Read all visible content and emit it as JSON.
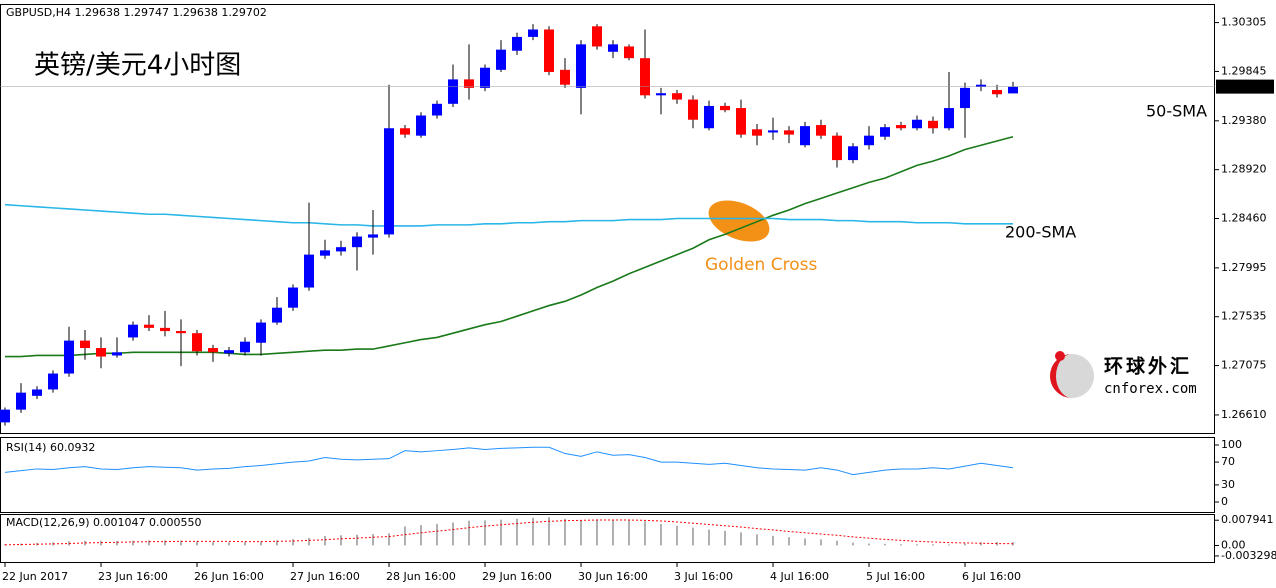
{
  "chart_data": [
    {
      "type": "candlestick",
      "title": "GBPUSD,H4  1.29638 1.29747 1.29638 1.29702",
      "subtitle": "英镑/美元4小时图",
      "annotation": "Golden Cross",
      "watermark": {
        "name": "环球外汇",
        "site": "cnforex.com"
      },
      "categories": [
        "22 Jun 2017",
        null,
        null,
        null,
        null,
        null,
        "23 Jun 16:00",
        null,
        null,
        null,
        null,
        null,
        "26 Jun 16:00",
        null,
        null,
        null,
        null,
        null,
        "27 Jun 16:00",
        null,
        null,
        null,
        null,
        null,
        "28 Jun 16:00",
        null,
        null,
        null,
        null,
        null,
        "29 Jun 16:00",
        null,
        null,
        null,
        null,
        null,
        "30 Jun 16:00",
        null,
        null,
        null,
        null,
        null,
        "3 Jul 16:00",
        null,
        null,
        null,
        null,
        null,
        "4 Jul 16:00",
        null,
        null,
        null,
        null,
        null,
        "5 Jul 16:00",
        null,
        null,
        null,
        null,
        null,
        "6 Jul 16:00",
        null,
        null,
        null
      ],
      "open": [
        1.2654,
        1.2666,
        1.2679,
        1.2685,
        1.27,
        1.2731,
        1.2724,
        1.2717,
        1.2734,
        1.2746,
        1.2743,
        1.274,
        1.2738,
        1.2724,
        1.2719,
        1.272,
        1.2729,
        1.2748,
        1.2762,
        1.2781,
        1.2811,
        1.2815,
        1.2819,
        1.2828,
        1.2831,
        1.2931,
        1.2924,
        1.2943,
        1.2954,
        1.2977,
        1.2969,
        1.2986,
        1.3004,
        1.3017,
        1.3024,
        1.2986,
        1.2969,
        1.3027,
        1.3003,
        1.3008,
        1.2997,
        1.2962,
        1.2964,
        1.2958,
        1.2931,
        1.2952,
        1.295,
        1.293,
        1.2927,
        1.2929,
        1.2915,
        1.2934,
        1.2924,
        1.2901,
        1.2915,
        1.2923,
        1.2934,
        1.2931,
        1.2938,
        1.2931,
        1.295,
        1.297,
        1.2967,
        1.29638
      ],
      "high": [
        1.2668,
        1.2691,
        1.2688,
        1.2703,
        1.2744,
        1.2741,
        1.2734,
        1.2734,
        1.2749,
        1.2755,
        1.2759,
        1.2751,
        1.2741,
        1.2727,
        1.2725,
        1.2734,
        1.2751,
        1.2772,
        1.2784,
        1.2861,
        1.2826,
        1.2825,
        1.2833,
        1.2854,
        1.2972,
        1.2934,
        1.2946,
        1.2957,
        1.2991,
        1.301,
        1.2991,
        1.3014,
        1.3021,
        1.3029,
        1.3027,
        1.2997,
        1.3014,
        1.3029,
        1.3014,
        1.301,
        1.3024,
        1.2969,
        1.2967,
        1.2962,
        1.2957,
        1.2955,
        1.2958,
        1.2935,
        1.2941,
        1.2933,
        1.2937,
        1.2939,
        1.2927,
        1.2917,
        1.2933,
        1.2935,
        1.2937,
        1.2943,
        1.2942,
        1.2984,
        1.2974,
        1.2977,
        1.2972,
        1.29747
      ],
      "low": [
        1.2651,
        1.2663,
        1.2676,
        1.2682,
        1.2697,
        1.2713,
        1.2705,
        1.2715,
        1.2731,
        1.274,
        1.2735,
        1.2707,
        1.2717,
        1.2711,
        1.2716,
        1.2717,
        1.2717,
        1.2746,
        1.2759,
        1.2778,
        1.2808,
        1.2811,
        1.2797,
        1.2812,
        1.2828,
        1.2922,
        1.2922,
        1.294,
        1.2951,
        1.2958,
        1.2966,
        1.2984,
        1.3,
        1.3014,
        1.2981,
        1.2969,
        1.2944,
        1.3005,
        1.2997,
        1.2995,
        1.2959,
        1.2944,
        1.2954,
        1.2931,
        1.2929,
        1.2946,
        1.2922,
        1.2915,
        1.292,
        1.2917,
        1.2913,
        1.2921,
        1.2894,
        1.2898,
        1.2911,
        1.292,
        1.2929,
        1.2929,
        1.2926,
        1.2929,
        1.2922,
        1.2966,
        1.296,
        1.29638
      ],
      "close": [
        1.2666,
        1.2682,
        1.2685,
        1.27,
        1.2731,
        1.2724,
        1.2716,
        1.272,
        1.2746,
        1.2743,
        1.274,
        1.2738,
        1.2721,
        1.272,
        1.2722,
        1.273,
        1.2748,
        1.2762,
        1.2781,
        1.2812,
        1.2816,
        1.2819,
        1.2829,
        1.2831,
        1.2931,
        1.2925,
        1.2943,
        1.2954,
        1.2977,
        1.2969,
        1.2988,
        1.3005,
        1.3017,
        1.3024,
        1.2984,
        1.2972,
        1.301,
        1.3008,
        1.301,
        1.2997,
        1.2962,
        1.2964,
        1.2958,
        1.2939,
        1.2952,
        1.2948,
        1.2925,
        1.2924,
        1.2929,
        1.2925,
        1.2933,
        1.2924,
        1.2901,
        1.2914,
        1.2924,
        1.2932,
        1.2931,
        1.2939,
        1.2931,
        1.295,
        1.2969,
        1.2972,
        1.2963,
        1.29702
      ],
      "up_color": "#0000ff",
      "down_color": "#ff0000",
      "series": [
        {
          "name": "50-SMA",
          "color": "#1a7a1a",
          "values": [
            1.2716,
            1.2716,
            1.2717,
            1.2717,
            1.2717,
            1.2718,
            1.2719,
            1.2719,
            1.272,
            1.272,
            1.272,
            1.272,
            1.272,
            1.272,
            1.2719,
            1.2718,
            1.2718,
            1.2719,
            1.272,
            1.2721,
            1.2722,
            1.2722,
            1.2723,
            1.2723,
            1.2726,
            1.2729,
            1.2732,
            1.2734,
            1.2738,
            1.2742,
            1.2746,
            1.2749,
            1.2754,
            1.2759,
            1.2764,
            1.2768,
            1.2774,
            1.2781,
            1.2787,
            1.2794,
            1.28,
            1.2806,
            1.2812,
            1.2818,
            1.2826,
            1.2831,
            1.2837,
            1.2843,
            1.2849,
            1.2854,
            1.286,
            1.2865,
            1.287,
            1.2875,
            1.288,
            1.2884,
            1.289,
            1.2896,
            1.29,
            1.2905,
            1.2911,
            1.2915,
            1.2919,
            1.2923
          ]
        },
        {
          "name": "200-SMA",
          "color": "#29b6e8",
          "values": [
            1.2859,
            1.2858,
            1.2857,
            1.2856,
            1.2855,
            1.2854,
            1.2853,
            1.2852,
            1.2851,
            1.285,
            1.285,
            1.2849,
            1.2848,
            1.2847,
            1.2846,
            1.2845,
            1.2844,
            1.2843,
            1.2842,
            1.2842,
            1.2841,
            1.284,
            1.284,
            1.2839,
            1.2839,
            1.2839,
            1.2839,
            1.284,
            1.284,
            1.284,
            1.2841,
            1.2841,
            1.2842,
            1.2842,
            1.2843,
            1.2843,
            1.2844,
            1.2844,
            1.2844,
            1.2845,
            1.2845,
            1.2845,
            1.2846,
            1.2846,
            1.2846,
            1.2846,
            1.2846,
            1.2846,
            1.2846,
            1.2845,
            1.2845,
            1.2845,
            1.2844,
            1.2844,
            1.2843,
            1.2843,
            1.2843,
            1.2842,
            1.2842,
            1.2842,
            1.2841,
            1.2841,
            1.2841,
            1.2841
          ]
        }
      ],
      "last_price": 1.29702,
      "ylim": [
        1.2644,
        1.3048
      ],
      "yticks": [
        1.30305,
        1.29845,
        {
          "value": 1.2938,
          "label": "1.29380"
        },
        {
          "value": 1.2892,
          "label": "1.28920"
        },
        {
          "value": 1.2846,
          "label": "1.28460"
        },
        1.27995,
        1.27535,
        1.27075,
        {
          "value": 1.2661,
          "label": "1.26610"
        }
      ]
    },
    {
      "type": "line",
      "title": "RSI(14) 60.0932",
      "color": "#1e90ff",
      "values": [
        52,
        55,
        58,
        57,
        60,
        62,
        58,
        57,
        60,
        62,
        61,
        60,
        56,
        58,
        59,
        62,
        64,
        67,
        70,
        72,
        78,
        75,
        74,
        75,
        76,
        90,
        88,
        90,
        92,
        95,
        92,
        94,
        95,
        96,
        96,
        85,
        80,
        88,
        82,
        83,
        78,
        70,
        70,
        68,
        66,
        68,
        64,
        60,
        58,
        57,
        56,
        60,
        56,
        48,
        52,
        56,
        58,
        58,
        60,
        58,
        63,
        68,
        64,
        60.0932
      ],
      "ylim": [
        -17.5,
        114
      ],
      "yticks": [
        100,
        70,
        30,
        0
      ]
    },
    {
      "type": "macd",
      "title": "MACD(12,26,9) 0.001047 0.000550",
      "color": "#b0b0b0",
      "signal_color": "#ff0000",
      "values": [
        0.0004,
        0.0006,
        0.0008,
        0.001,
        0.0013,
        0.0015,
        0.0015,
        0.0014,
        0.0015,
        0.0016,
        0.0016,
        0.0015,
        0.0013,
        0.0011,
        0.001,
        0.0011,
        0.0013,
        0.0016,
        0.002,
        0.0024,
        0.003,
        0.0032,
        0.0034,
        0.0036,
        0.0038,
        0.006,
        0.0064,
        0.0068,
        0.0072,
        0.0078,
        0.0079,
        0.0081,
        0.0084,
        0.0087,
        0.0089,
        0.0084,
        0.008,
        0.0082,
        0.008,
        0.0079,
        0.0076,
        0.0068,
        0.0062,
        0.0056,
        0.005,
        0.0046,
        0.0041,
        0.0035,
        0.003,
        0.0026,
        0.0022,
        0.0019,
        0.0015,
        0.0009,
        0.0006,
        0.0005,
        0.0004,
        0.0004,
        0.0004,
        0.0003,
        0.0006,
        0.001,
        0.0011,
        0.001047
      ],
      "signal": [
        0.0002,
        0.0003,
        0.0004,
        0.0005,
        0.0006,
        0.0008,
        0.0009,
        0.001,
        0.0011,
        0.0012,
        0.0012,
        0.0013,
        0.0013,
        0.0013,
        0.0013,
        0.0012,
        0.0012,
        0.0013,
        0.0014,
        0.0016,
        0.0018,
        0.0021,
        0.0023,
        0.0026,
        0.0028,
        0.0034,
        0.004,
        0.0045,
        0.005,
        0.0056,
        0.0061,
        0.0065,
        0.0069,
        0.0073,
        0.0076,
        0.0078,
        0.0079,
        0.008,
        0.008,
        0.008,
        0.0079,
        0.0077,
        0.0074,
        0.007,
        0.0066,
        0.0062,
        0.0058,
        0.0053,
        0.0049,
        0.0044,
        0.004,
        0.0036,
        0.0032,
        0.0027,
        0.0023,
        0.0019,
        0.0016,
        0.0013,
        0.0011,
        0.0009,
        0.0008,
        0.0007,
        0.0006,
        0.00055
      ],
      "ylim": [
        -0.0052,
        0.0099
      ],
      "yticks": [
        0.007941,
        {
          "value": 0,
          "label": "0.00"
        },
        -0.003298
      ]
    }
  ]
}
